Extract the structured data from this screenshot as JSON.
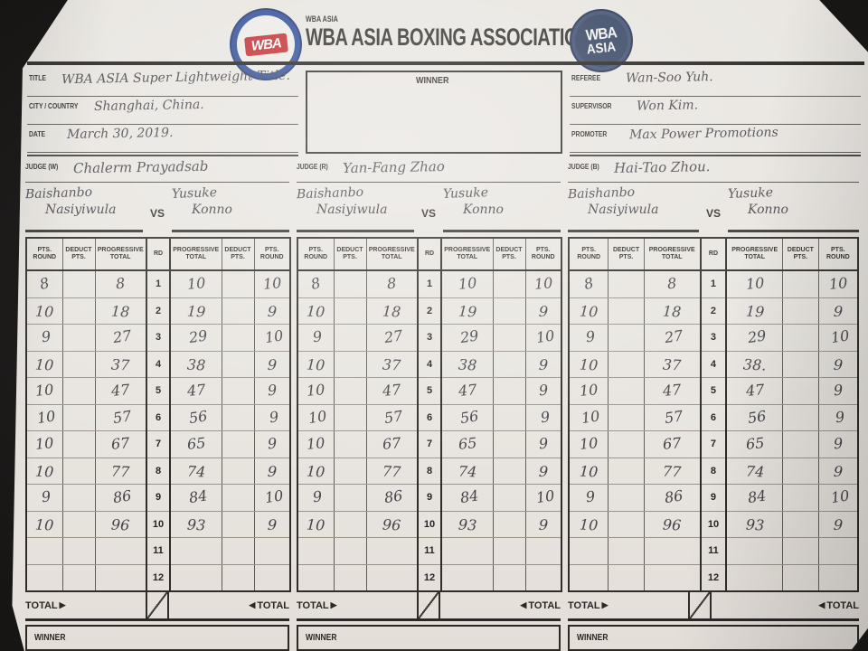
{
  "colors": {
    "paper": "#e8e5e0",
    "ink": "#2b2a28",
    "pen": "#45444a",
    "background": "#181716",
    "logo_blue": "#2c4a97",
    "logo_navy": "#31405f",
    "logo_red": "#c22a2e"
  },
  "header": {
    "brand_small": "WBA ASIA",
    "brand_large": "WBA ASIA BOXING ASSOCIATION",
    "left_logo_text": "WBA",
    "right_logo_line1": "WBA",
    "right_logo_line2": "ASIA"
  },
  "info": {
    "title_label": "TITLE",
    "title_value": "WBA ASIA Super Lightweight Title.",
    "city_label": "CITY / COUNTRY",
    "city_value": "Shanghai, China.",
    "date_label": "DATE",
    "date_value": "March 30, 2019.",
    "winner_label": "WINNER",
    "winner_value": "",
    "referee_label": "REFEREE",
    "referee_value": "Wan-Soo Yuh.",
    "supervisor_label": "SUPERVISOR",
    "supervisor_value": "Won Kim.",
    "promoter_label": "PROMOTER",
    "promoter_value": "Max Power Promotions"
  },
  "table": {
    "headers": [
      "PTS.\nROUND",
      "DEDUCT\nPTS.",
      "PROGRESSIVE\nTOTAL",
      "RD",
      "PROGRESSIVE\nTOTAL",
      "DEDUCT\nPTS.",
      "PTS.\nROUND"
    ],
    "total_label": "TOTAL",
    "winner_label": "WINNER"
  },
  "icons": {
    "tri_right": "▶",
    "tri_left": "◀"
  },
  "judges": [
    {
      "label": "JUDGE (W)",
      "name": "Chalerm Prayadsab",
      "left_fighter_1": "Baishanbo",
      "left_fighter_2": "Nasiyiwula",
      "right_fighter_1": "Yusuke",
      "right_fighter_2": "Konno",
      "vs": "VS",
      "rows": [
        [
          "8",
          "",
          "8",
          "1",
          "10",
          "",
          "10"
        ],
        [
          "10",
          "",
          "18",
          "2",
          "19",
          "",
          "9"
        ],
        [
          "9",
          "",
          "27",
          "3",
          "29",
          "",
          "10"
        ],
        [
          "10",
          "",
          "37",
          "4",
          "38",
          "",
          "9"
        ],
        [
          "10",
          "",
          "47",
          "5",
          "47",
          "",
          "9"
        ],
        [
          "10",
          "",
          "57",
          "6",
          "56",
          "",
          "9"
        ],
        [
          "10",
          "",
          "67",
          "7",
          "65",
          "",
          "9"
        ],
        [
          "10",
          "",
          "77",
          "8",
          "74",
          "",
          "9"
        ],
        [
          "9",
          "",
          "86",
          "9",
          "84",
          "",
          "10"
        ],
        [
          "10",
          "",
          "96",
          "10",
          "93",
          "",
          "9"
        ],
        [
          "",
          "",
          "",
          "11",
          "",
          "",
          ""
        ],
        [
          "",
          "",
          "",
          "12",
          "",
          "",
          ""
        ]
      ]
    },
    {
      "label": "JUDGE (R)",
      "name": "Yan-Fang Zhao",
      "left_fighter_1": "Baishanbo",
      "left_fighter_2": "Nasiyiwula",
      "right_fighter_1": "Yusuke",
      "right_fighter_2": "Konno",
      "vs": "VS",
      "rows": [
        [
          "8",
          "",
          "8",
          "1",
          "10",
          "",
          "10"
        ],
        [
          "10",
          "",
          "18",
          "2",
          "19",
          "",
          "9"
        ],
        [
          "9",
          "",
          "27",
          "3",
          "29",
          "",
          "10"
        ],
        [
          "10",
          "",
          "37",
          "4",
          "38",
          "",
          "9"
        ],
        [
          "10",
          "",
          "47",
          "5",
          "47",
          "",
          "9"
        ],
        [
          "10",
          "",
          "57",
          "6",
          "56",
          "",
          "9"
        ],
        [
          "10",
          "",
          "67",
          "7",
          "65",
          "",
          "9"
        ],
        [
          "10",
          "",
          "77",
          "8",
          "74",
          "",
          "9"
        ],
        [
          "9",
          "",
          "86",
          "9",
          "84",
          "",
          "10"
        ],
        [
          "10",
          "",
          "96",
          "10",
          "93",
          "",
          "9"
        ],
        [
          "",
          "",
          "",
          "11",
          "",
          "",
          ""
        ],
        [
          "",
          "",
          "",
          "12",
          "",
          "",
          ""
        ]
      ]
    },
    {
      "label": "JUDGE (B)",
      "name": "Hai-Tao Zhou.",
      "left_fighter_1": "Baishanbo",
      "left_fighter_2": "Nasiyiwula",
      "right_fighter_1": "Yusuke",
      "right_fighter_2": "Konno",
      "vs": "VS",
      "rows": [
        [
          "8",
          "",
          "8",
          "1",
          "10",
          "",
          "10"
        ],
        [
          "10",
          "",
          "18",
          "2",
          "19",
          "",
          "9"
        ],
        [
          "9",
          "",
          "27",
          "3",
          "29",
          "",
          "10"
        ],
        [
          "10",
          "",
          "37",
          "4",
          "38.",
          "",
          "9"
        ],
        [
          "10",
          "",
          "47",
          "5",
          "47",
          "",
          "9"
        ],
        [
          "10",
          "",
          "57",
          "6",
          "56",
          "",
          "9"
        ],
        [
          "10",
          "",
          "67",
          "7",
          "65",
          "",
          "9"
        ],
        [
          "10",
          "",
          "77",
          "8",
          "74",
          "",
          "9"
        ],
        [
          "9",
          "",
          "86",
          "9",
          "84",
          "",
          "10"
        ],
        [
          "10",
          "",
          "96",
          "10",
          "93",
          "",
          "9"
        ],
        [
          "",
          "",
          "",
          "11",
          "",
          "",
          ""
        ],
        [
          "",
          "",
          "",
          "12",
          "",
          "",
          ""
        ]
      ]
    }
  ]
}
